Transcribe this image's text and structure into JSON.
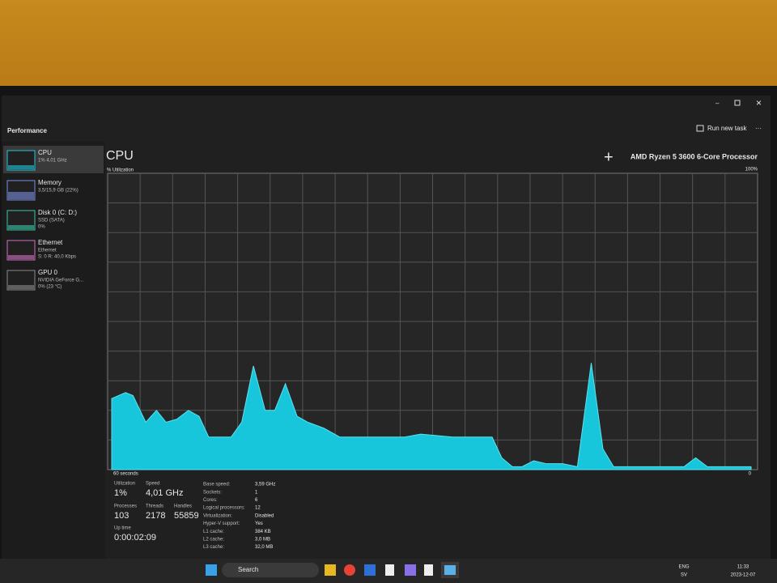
{
  "header": {
    "title": "Performance",
    "run_new_task": "Run new task"
  },
  "sidebar": [
    {
      "name": "CPU",
      "lines": [
        "1% 4,01 GHz"
      ]
    },
    {
      "name": "Memory",
      "lines": [
        "3,5/15,9 GB (22%)"
      ]
    },
    {
      "name": "Disk 0 (C: D:)",
      "lines": [
        "SSD (SATA)",
        "0%"
      ]
    },
    {
      "name": "Ethernet",
      "lines": [
        "Ethernet",
        "S: 0 R: 40,0 Kbps"
      ]
    },
    {
      "name": "GPU 0",
      "lines": [
        "NVIDIA GeForce G...",
        "0% (23 °C)"
      ]
    }
  ],
  "main": {
    "title": "CPU",
    "subtitle": "% Utilization",
    "processor": "AMD Ryzen 5 3600 6-Core Processor"
  },
  "cpu_graph": {
    "type": "area",
    "ymax_label": "100%",
    "ymin_label": "0",
    "xaxis_label": "60 seconds",
    "xlim": [
      0,
      60
    ],
    "ylim": [
      0,
      100
    ],
    "x": [
      0,
      1.3,
      2,
      3.2,
      4.2,
      5.1,
      6.1,
      7.2,
      8.2,
      9.1,
      11.2,
      12.2,
      13.3,
      14.4,
      15.3,
      16.3,
      17.4,
      18.4,
      19.9,
      21.4,
      27.5,
      29,
      32,
      35.7,
      36.6,
      37.6,
      38.5,
      39.6,
      40.8,
      42.3,
      43.7,
      45,
      46.1,
      47.1,
      50.3,
      53.7,
      54.8,
      55.9,
      60
    ],
    "values": [
      24,
      26,
      25,
      16,
      20,
      16,
      17,
      20,
      18,
      11,
      11,
      16,
      35,
      20,
      20,
      29,
      18,
      16,
      14,
      11,
      11,
      12,
      11,
      11,
      4,
      1,
      1,
      3,
      2,
      2,
      1,
      36,
      7,
      1,
      1,
      1,
      4,
      1,
      1
    ]
  },
  "stats": [
    {
      "label": "Utilization",
      "value": "1%"
    },
    {
      "label": "Speed",
      "value": "4,01 GHz"
    },
    {
      "label": "Processes",
      "value": "103"
    },
    {
      "label": "Threads",
      "value": "2178"
    },
    {
      "label": "Handles",
      "value": "55859"
    },
    {
      "label": "Up time",
      "value": "0:00:02:09"
    }
  ],
  "specs": [
    {
      "label": "Base speed:",
      "value": "3,59 GHz"
    },
    {
      "label": "Sockets:",
      "value": "1"
    },
    {
      "label": "Cores:",
      "value": "6"
    },
    {
      "label": "Logical processors:",
      "value": "12"
    },
    {
      "label": "Virtualization:",
      "value": "Disabled"
    },
    {
      "label": "Hyper-V support:",
      "value": "Yes"
    },
    {
      "label": "L1 cache:",
      "value": "384 KB"
    },
    {
      "label": "L2 cache:",
      "value": "3,0 MB"
    },
    {
      "label": "L3 cache:",
      "value": "32,0 MB"
    }
  ],
  "taskbar": {
    "search": "Search",
    "lang": "ENG",
    "layout": "SV",
    "time": "11:33",
    "date": "2023-12-07"
  }
}
